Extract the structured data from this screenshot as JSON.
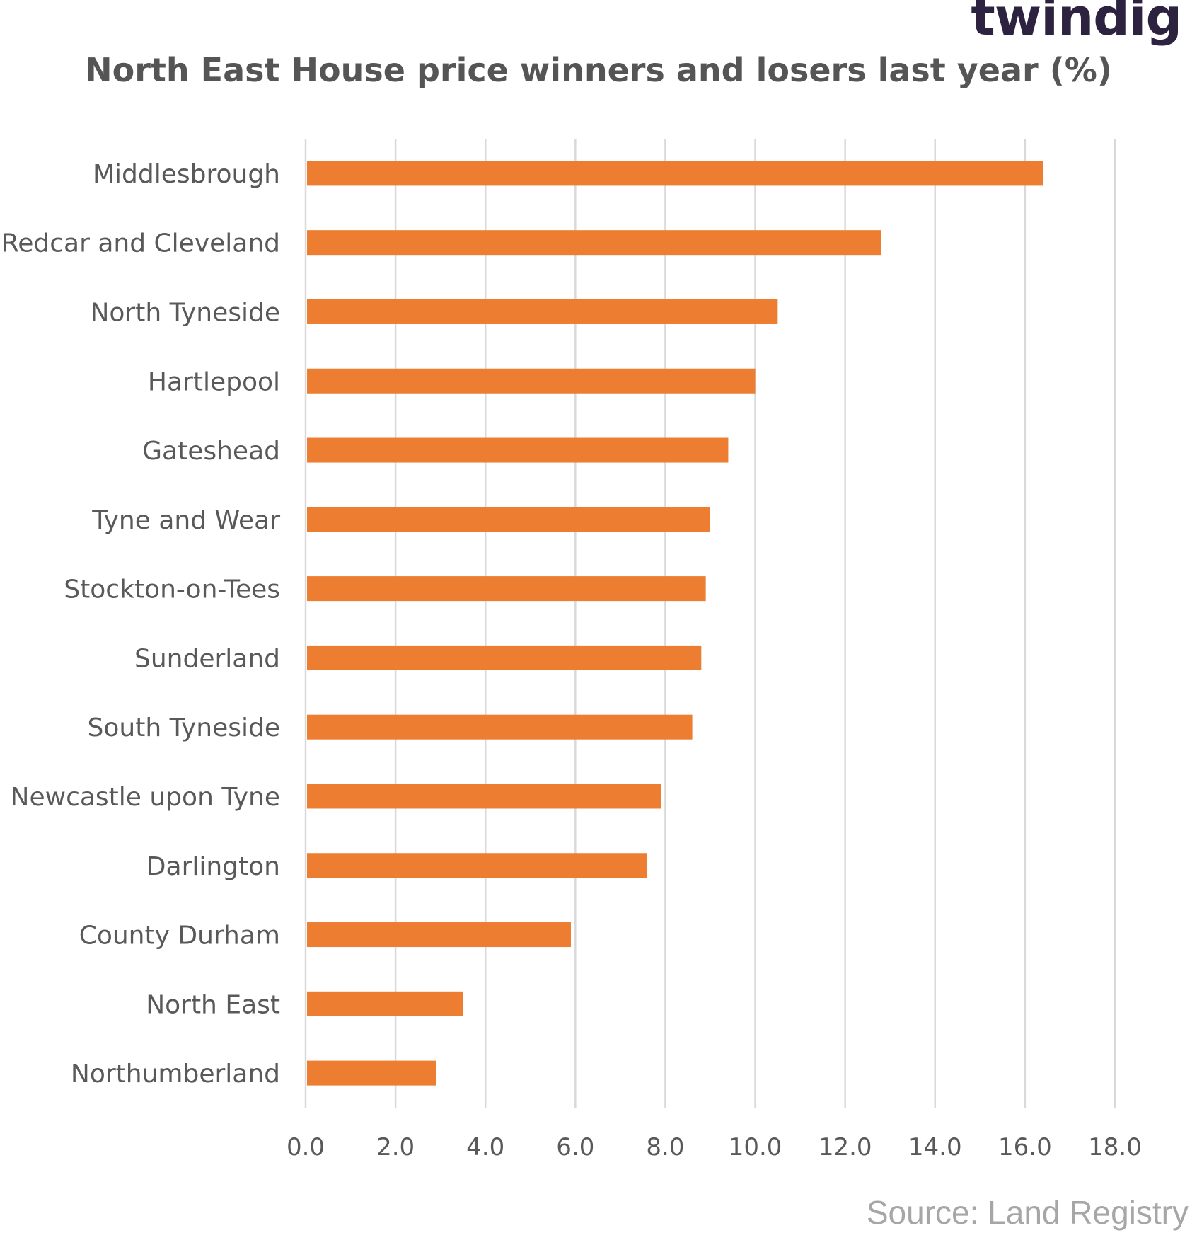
{
  "brand": {
    "logo_text": "twindig",
    "logo_color": "#2d2340",
    "logo_accent": "#ed7d31"
  },
  "source_note": "Source: Land Registry",
  "chart_data": {
    "type": "bar",
    "orientation": "horizontal",
    "title": "North East House price winners and losers last year (%)",
    "xlabel": "",
    "ylabel": "",
    "categories": [
      "Middlesbrough",
      "Redcar and Cleveland",
      "North Tyneside",
      "Hartlepool",
      "Gateshead",
      "Tyne and Wear",
      "Stockton-on-Tees",
      "Sunderland",
      "South Tyneside",
      "Newcastle upon Tyne",
      "Darlington",
      "County Durham",
      "North East",
      "Northumberland"
    ],
    "values": [
      16.4,
      12.8,
      10.5,
      10.0,
      9.4,
      9.0,
      8.9,
      8.8,
      8.6,
      7.9,
      7.6,
      5.9,
      3.5,
      2.9
    ],
    "xlim": [
      0,
      18
    ],
    "x_ticks": [
      "0.0",
      "2.0",
      "4.0",
      "6.0",
      "8.0",
      "10.0",
      "12.0",
      "14.0",
      "16.0",
      "18.0"
    ],
    "grid": "vertical",
    "legend": "none",
    "bar_color": "#ed7d31",
    "gridline_color": "#d9d9d9",
    "label_color": "#595959"
  }
}
